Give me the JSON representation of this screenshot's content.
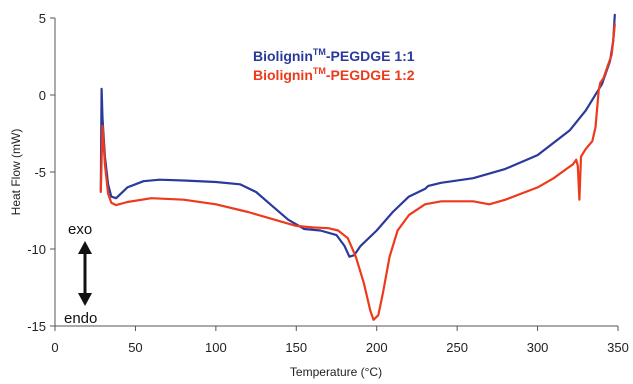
{
  "chart_data": {
    "type": "line",
    "title": "",
    "xlabel": "Temperature (°C)",
    "ylabel": "Heat Flow (mW)",
    "xlim": [
      0,
      350
    ],
    "ylim": [
      -15,
      5
    ],
    "xticks": [
      0,
      50,
      100,
      150,
      200,
      250,
      300,
      350
    ],
    "yticks": [
      5,
      0,
      -5,
      -10,
      -15
    ],
    "grid": false,
    "legend_position": "top-center",
    "annotations": {
      "exo": "exo",
      "endo": "endo"
    },
    "series": [
      {
        "name_base": "Biolignin",
        "name_sup": "TM",
        "name_rest": "-PEGDGE 1:1",
        "color": "#2a3a9c",
        "points": [
          [
            28.5,
            -6.2
          ],
          [
            29,
            0.4
          ],
          [
            29.5,
            -1.5
          ],
          [
            31,
            -4.0
          ],
          [
            33,
            -5.8
          ],
          [
            35,
            -6.6
          ],
          [
            38,
            -6.7
          ],
          [
            45,
            -6.0
          ],
          [
            55,
            -5.6
          ],
          [
            65,
            -5.5
          ],
          [
            80,
            -5.55
          ],
          [
            100,
            -5.65
          ],
          [
            115,
            -5.8
          ],
          [
            125,
            -6.3
          ],
          [
            135,
            -7.2
          ],
          [
            145,
            -8.1
          ],
          [
            155,
            -8.7
          ],
          [
            165,
            -8.8
          ],
          [
            175,
            -9.1
          ],
          [
            180,
            -9.8
          ],
          [
            183,
            -10.5
          ],
          [
            186,
            -10.4
          ],
          [
            190,
            -9.8
          ],
          [
            200,
            -8.8
          ],
          [
            210,
            -7.6
          ],
          [
            220,
            -6.6
          ],
          [
            230,
            -6.1
          ],
          [
            232,
            -5.9
          ],
          [
            240,
            -5.7
          ],
          [
            260,
            -5.4
          ],
          [
            280,
            -4.8
          ],
          [
            300,
            -3.9
          ],
          [
            320,
            -2.3
          ],
          [
            330,
            -1.0
          ],
          [
            340,
            0.7
          ],
          [
            345,
            2.2
          ],
          [
            347,
            3.5
          ],
          [
            348,
            5.2
          ]
        ]
      },
      {
        "name_base": "Biolignin",
        "name_sup": "TM",
        "name_rest": "-PEGDGE 1:2",
        "color": "#ee3a1c",
        "points": [
          [
            28.5,
            -6.3
          ],
          [
            29.5,
            -2.0
          ],
          [
            31,
            -4.5
          ],
          [
            33,
            -6.4
          ],
          [
            35,
            -7.0
          ],
          [
            38,
            -7.15
          ],
          [
            45,
            -6.95
          ],
          [
            60,
            -6.7
          ],
          [
            80,
            -6.8
          ],
          [
            100,
            -7.1
          ],
          [
            120,
            -7.6
          ],
          [
            140,
            -8.2
          ],
          [
            150,
            -8.5
          ],
          [
            160,
            -8.6
          ],
          [
            170,
            -8.65
          ],
          [
            176,
            -8.8
          ],
          [
            182,
            -9.3
          ],
          [
            187,
            -10.5
          ],
          [
            192,
            -12.2
          ],
          [
            196,
            -14.0
          ],
          [
            198,
            -14.6
          ],
          [
            201,
            -14.3
          ],
          [
            204,
            -12.8
          ],
          [
            208,
            -10.5
          ],
          [
            213,
            -8.8
          ],
          [
            220,
            -7.8
          ],
          [
            230,
            -7.1
          ],
          [
            240,
            -6.9
          ],
          [
            260,
            -6.9
          ],
          [
            270,
            -7.1
          ],
          [
            280,
            -6.8
          ],
          [
            300,
            -6.0
          ],
          [
            310,
            -5.4
          ],
          [
            318,
            -4.8
          ],
          [
            322,
            -4.5
          ],
          [
            324,
            -4.2
          ],
          [
            325,
            -4.6
          ],
          [
            326,
            -6.8
          ],
          [
            327,
            -4.0
          ],
          [
            330,
            -3.5
          ],
          [
            334,
            -3.0
          ],
          [
            336,
            -2.1
          ],
          [
            338,
            0.3
          ],
          [
            339,
            0.8
          ],
          [
            341,
            1.1
          ],
          [
            344,
            2.0
          ],
          [
            346,
            2.6
          ],
          [
            347,
            3.5
          ],
          [
            348,
            4.6
          ]
        ]
      }
    ]
  }
}
